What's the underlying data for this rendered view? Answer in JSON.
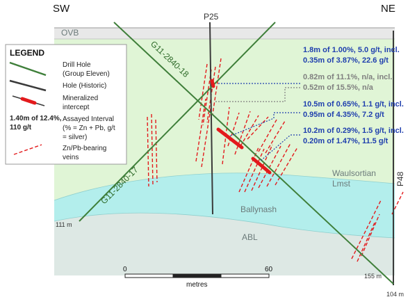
{
  "section": {
    "direction_left": "SW",
    "direction_right": "NE",
    "units": {
      "ovb": "OVB",
      "waulsortian": [
        "Waulsortian",
        "Lmst"
      ],
      "ballynash": "Ballynash",
      "abl": "ABL"
    }
  },
  "holes": {
    "g11_2840_18": "G11-2840-18",
    "g11_2840_17": "G11-2840-17",
    "p25": "P25",
    "p48": "P48"
  },
  "depths": {
    "left": "111 m",
    "mid": "155 m",
    "right": "104 m"
  },
  "assays": [
    {
      "lines": [
        "1.8m of 1.00%, 5.0 g/t, incl.",
        "0.35m of 3.87%, 22.6 g/t"
      ],
      "color": "#1f3fae"
    },
    {
      "lines": [
        "0.82m of 11.1%, n/a, incl.",
        "0.52m of 15.5%, n/a"
      ],
      "color": "#7f7f7f"
    },
    {
      "lines": [
        "10.5m of 0.65%, 1.1 g/t, incl.",
        "0.95m of 4.35%, 7.2 g/t"
      ],
      "color": "#1f3fae"
    },
    {
      "lines": [
        "10.2m of 0.29%, 1.5 g/t, incl.",
        "0.20m of 1.47%, 11.5 g/t"
      ],
      "color": "#1f3fae"
    }
  ],
  "legend": {
    "title": "LEGEND",
    "drill_hole": [
      "Drill Hole",
      "(Group Eleven)"
    ],
    "hole_historic": "Hole (Historic)",
    "mineralized": [
      "Mineralized",
      "intercept"
    ],
    "assay_example": [
      "1.40m of 12.4%,",
      "110 g/t"
    ],
    "assayed_interval": [
      "Assayed Interval",
      "(% = Zn + Pb, g/t",
      "= silver)"
    ],
    "veins": [
      "Zn/Pb-bearing",
      "veins"
    ]
  },
  "scale": {
    "start": "0",
    "end": "60",
    "unit": "metres"
  },
  "colors": {
    "ovb": "#e8e8e8",
    "waulsortian": "#e0f5d6",
    "ballynash": "#b3eeec",
    "abl": "#dde8e4",
    "drill_hole": "#3f7f3a",
    "historic_hole": "#3a3a3a",
    "vein": "#e31a1c",
    "intercept": "#e31a1c",
    "assay_blue": "#1f3fae",
    "assay_grey": "#7f7f7f"
  }
}
